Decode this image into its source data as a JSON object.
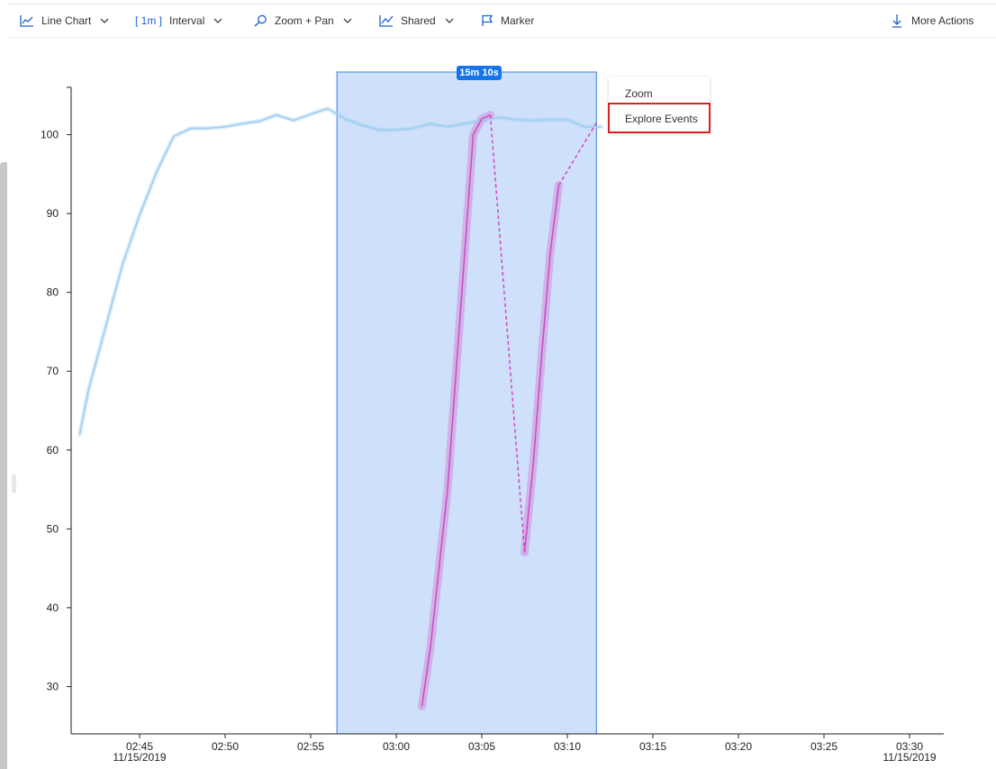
{
  "toolbar": {
    "chart_type": {
      "label": "Line Chart",
      "icon": "line-chart-icon"
    },
    "interval": {
      "value": "[ 1m ]",
      "label": "Interval"
    },
    "zoom": {
      "label": "Zoom + Pan",
      "icon": "search-icon"
    },
    "shared": {
      "label": "Shared",
      "icon": "shared-chart-icon"
    },
    "marker": {
      "label": "Marker",
      "icon": "flag-icon"
    },
    "more": {
      "label": "More Actions",
      "icon": "download-icon"
    }
  },
  "selection": {
    "duration_label": "15m 10s"
  },
  "context_menu": {
    "items": [
      "Zoom",
      "Explore Events"
    ],
    "highlighted": "Explore Events"
  },
  "colors": {
    "accent": "#1774e8",
    "series_blue": "#9fcdf0",
    "series_magenta": "#d148c0",
    "selection_fill": "#cfe0fa",
    "highlight_box": "#e02020"
  },
  "chart_data": {
    "type": "line",
    "ylim": [
      24,
      106
    ],
    "xlim": [
      "02:41",
      "03:32"
    ],
    "yticks": [
      30,
      40,
      50,
      60,
      70,
      80,
      90,
      100
    ],
    "xticks": [
      "02:45",
      "02:50",
      "02:55",
      "03:00",
      "03:05",
      "03:10",
      "03:15",
      "03:20",
      "03:25",
      "03:30"
    ],
    "date_labels": [
      "11/15/2019",
      "11/15/2019"
    ],
    "grid": false,
    "selection_range": [
      "02:56:32",
      "03:11:42"
    ],
    "series": [
      {
        "color": "#9fcdf0",
        "style": "solid",
        "x": [
          "02:41:30",
          "02:42",
          "02:43",
          "02:44",
          "02:45",
          "02:46",
          "02:47",
          "02:48",
          "02:49",
          "02:50",
          "02:51",
          "02:52",
          "02:53",
          "02:54",
          "02:55",
          "02:56",
          "02:57",
          "02:58",
          "02:59",
          "03:00",
          "03:01",
          "03:02",
          "03:03",
          "03:04",
          "03:05",
          "03:06",
          "03:07",
          "03:08",
          "03:09",
          "03:10",
          "03:11",
          "03:12"
        ],
        "values": [
          62,
          67.5,
          75.5,
          83.5,
          89.8,
          95.3,
          99.8,
          100.8,
          100.8,
          101,
          101.4,
          101.7,
          102.5,
          101.8,
          102.6,
          103.3,
          102,
          101.2,
          100.6,
          100.6,
          100.8,
          101.4,
          101,
          101.4,
          101.8,
          102.2,
          101.9,
          101.8,
          101.9,
          101.9,
          101,
          101
        ]
      },
      {
        "color": "#d148c0",
        "style": "solid",
        "x": [
          "03:01:30",
          "03:02",
          "03:03",
          "03:04",
          "03:04:30",
          "03:05",
          "03:05:30"
        ],
        "values": [
          27.5,
          35,
          55,
          85,
          100,
          102,
          102.5
        ]
      },
      {
        "color": "#d148c0",
        "style": "dashed",
        "x": [
          "03:05:30",
          "03:07:30"
        ],
        "values": [
          102.5,
          47
        ]
      },
      {
        "color": "#d148c0",
        "style": "solid",
        "x": [
          "03:07:30",
          "03:08",
          "03:08:30",
          "03:09",
          "03:09:30"
        ],
        "values": [
          47,
          58,
          72,
          85,
          93.6
        ]
      },
      {
        "color": "#d148c0",
        "style": "dashed",
        "x": [
          "03:09:30",
          "03:11:42"
        ],
        "values": [
          93.6,
          101.5
        ]
      }
    ]
  }
}
